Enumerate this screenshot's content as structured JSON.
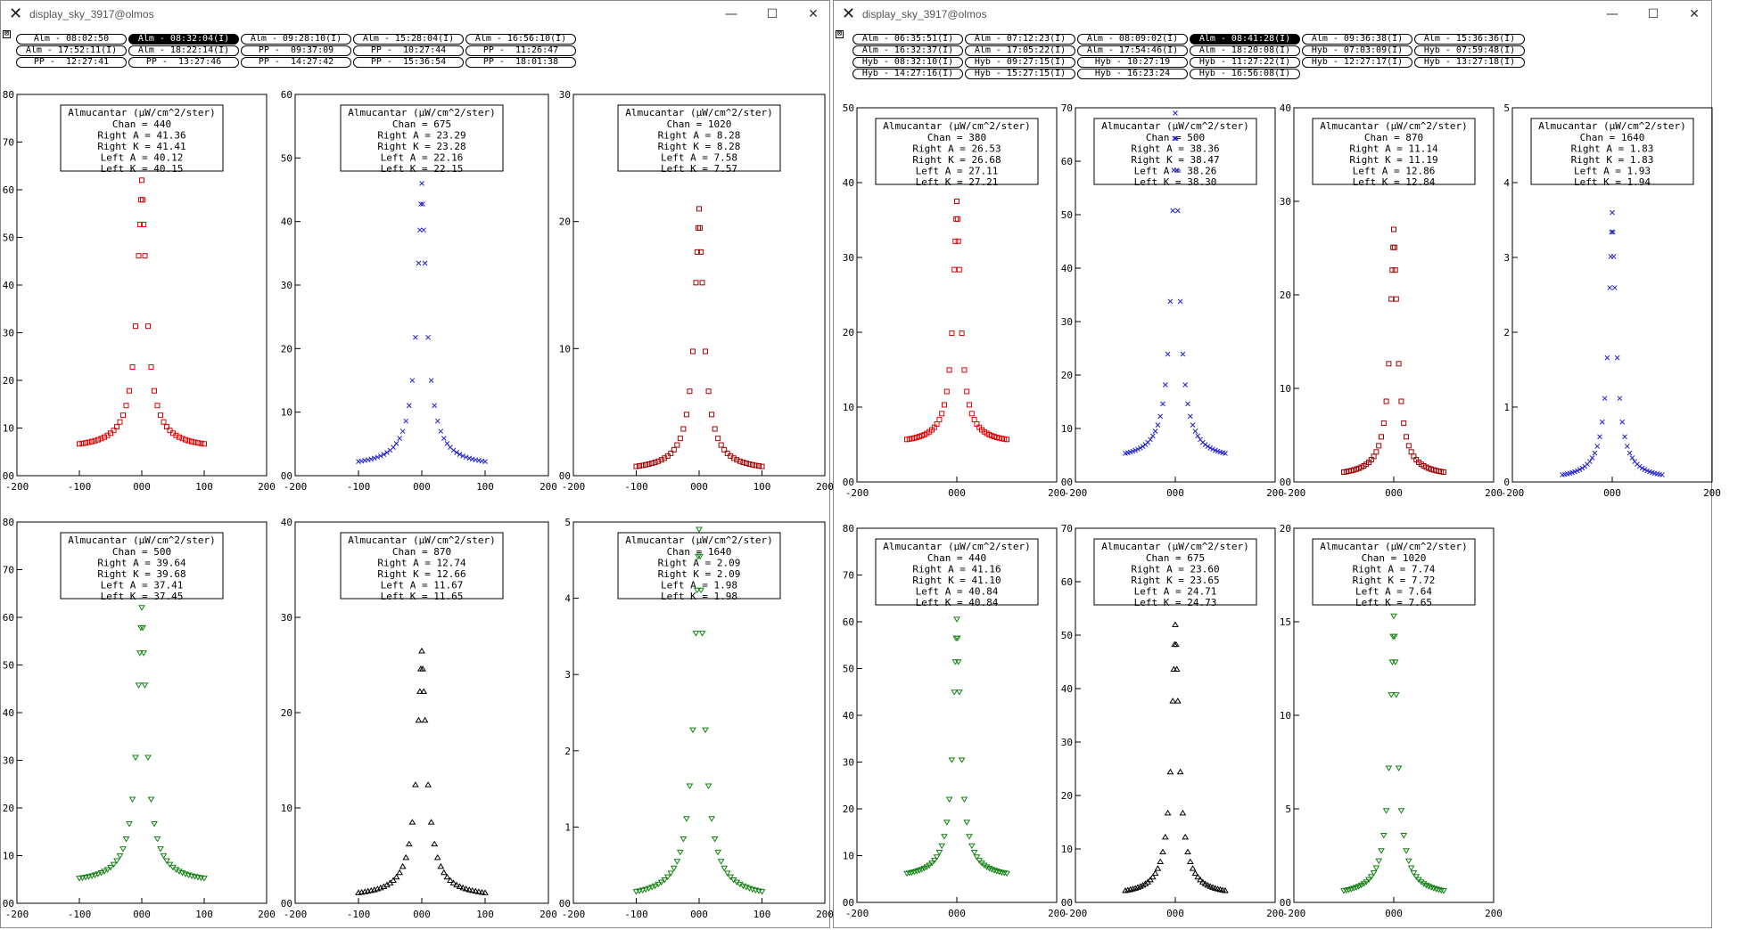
{
  "windows": [
    {
      "title": "display_sky_3917@olmos",
      "controls": {
        "minimize": "—",
        "maximize": "☐",
        "close": "✕"
      },
      "buttons": [
        {
          "label": "Alm - 08:02:50",
          "active": false
        },
        {
          "label": "Alm - 08:32:04(I)",
          "active": true
        },
        {
          "label": "Alm - 09:28:10(I)",
          "active": false
        },
        {
          "label": "Alm - 15:28:04(I)",
          "active": false
        },
        {
          "label": "Alm - 16:56:10(I)",
          "active": false
        },
        {
          "label": "Alm - 17:52:11(I)",
          "active": false
        },
        {
          "label": "Alm - 18:22:14(I)",
          "active": false
        },
        {
          "label": "PP -  09:37:09",
          "active": false
        },
        {
          "label": "PP -  10:27:44",
          "active": false
        },
        {
          "label": "PP -  11:26:47",
          "active": false
        },
        {
          "label": "PP -  12:27:41",
          "active": false
        },
        {
          "label": "PP -  13:27:46",
          "active": false
        },
        {
          "label": "PP -  14:27:42",
          "active": false
        },
        {
          "label": "PP -  15:36:54",
          "active": false
        },
        {
          "label": "PP -  18:01:38",
          "active": false
        }
      ],
      "plots": [
        {
          "title": "Almucantar (µW/cm^2/ster)",
          "lines": [
            "Chan = 440",
            "Right A = 41.36",
            "Right K = 41.41",
            "Left A = 40.12",
            "Left K = 40.15"
          ],
          "color": "#e00000",
          "marker": "square",
          "ymax": 80,
          "ystep": 10,
          "peak": 62,
          "base": 5.5,
          "xlabels": [
            "-200",
            "-100",
            "000",
            "100",
            "200"
          ],
          "ylabels": [
            "00",
            "10",
            "20",
            "30",
            "40",
            "50",
            "60",
            "70",
            "80"
          ]
        },
        {
          "title": "Almucantar (µW/cm^2/ster)",
          "lines": [
            "Chan = 675",
            "Right A = 23.29",
            "Right K = 23.28",
            "Left A = 22.16",
            "Left K = 22.15"
          ],
          "color": "#2020d0",
          "marker": "x",
          "ymax": 60,
          "ystep": 10,
          "peak": 46,
          "base": 1.3,
          "xlabels": [
            "-200",
            "-100",
            "000",
            "100",
            "200"
          ],
          "ylabels": [
            "00",
            "10",
            "20",
            "30",
            "40",
            "50",
            "60"
          ]
        },
        {
          "title": "Almucantar (µW/cm^2/ster)",
          "lines": [
            "Chan = 1020",
            "Right A = 8.28",
            "Right K = 8.28",
            "Left A = 7.58",
            "Left K = 7.57"
          ],
          "color": "#a00000",
          "marker": "square",
          "ymax": 30,
          "ystep": 10,
          "peak": 21,
          "base": 0.3,
          "xlabels": [
            "-200",
            "-100",
            "000",
            "100",
            "200"
          ],
          "ylabels": [
            "00",
            "10",
            "20",
            "30"
          ]
        },
        {
          "title": "Almucantar (µW/cm^2/ster)",
          "lines": [
            "Chan = 500",
            "Right A = 39.64",
            "Right K = 39.68",
            "Left A = 37.41",
            "Left K = 37.45"
          ],
          "color": "#108010",
          "marker": "tri-down",
          "ymax": 80,
          "ystep": 10,
          "peak": 62,
          "base": 4,
          "xlabels": [
            "-200",
            "-100",
            "000",
            "100",
            "200"
          ],
          "ylabels": [
            "00",
            "10",
            "20",
            "30",
            "40",
            "50",
            "60",
            "70",
            "80"
          ]
        },
        {
          "title": "Almucantar (µW/cm^2/ster)",
          "lines": [
            "Chan = 870",
            "Right A = 12.74",
            "Right K = 12.66",
            "Left A = 11.67",
            "Left K = 11.65"
          ],
          "color": "#000000",
          "marker": "tri-up",
          "ymax": 40,
          "ystep": 10,
          "peak": 26.5,
          "base": 0.6,
          "xlabels": [
            "-200",
            "-100",
            "000",
            "100",
            "200"
          ],
          "ylabels": [
            "00",
            "10",
            "20",
            "30",
            "40"
          ]
        },
        {
          "title": "Almucantar (µW/cm^2/ster)",
          "lines": [
            "Chan = 1640",
            "Right A = 2.09",
            "Right K = 2.09",
            "Left A = 1.98",
            "Left K = 1.98"
          ],
          "color": "#108010",
          "marker": "tri-down",
          "ymax": 5,
          "ystep": 1,
          "peak": 4.9,
          "base": 0.05,
          "xlabels": [
            "-200",
            "-100",
            "000",
            "100",
            "200"
          ],
          "ylabels": [
            "00",
            "1",
            "2",
            "3",
            "4",
            "5"
          ]
        }
      ]
    },
    {
      "title": "display_sky_3917@olmos",
      "controls": {
        "minimize": "—",
        "maximize": "☐",
        "close": "✕"
      },
      "buttons": [
        {
          "label": "Alm - 06:35:51(I)",
          "active": false
        },
        {
          "label": "Alm - 07:12:23(I)",
          "active": false
        },
        {
          "label": "Alm - 08:09:02(I)",
          "active": false
        },
        {
          "label": "Alm - 08:41:28(I)",
          "active": true
        },
        {
          "label": "Alm - 09:36:38(I)",
          "active": false
        },
        {
          "label": "Alm - 15:36:36(I)",
          "active": false
        },
        {
          "label": "Alm - 16:32:37(I)",
          "active": false
        },
        {
          "label": "Alm - 17:05:22(I)",
          "active": false
        },
        {
          "label": "Alm - 17:54:46(I)",
          "active": false
        },
        {
          "label": "Alm - 18:20:08(I)",
          "active": false
        },
        {
          "label": "Hyb - 07:03:09(I)",
          "active": false
        },
        {
          "label": "Hyb - 07:59:48(I)",
          "active": false
        },
        {
          "label": "Hyb - 08:32:10(I)",
          "active": false
        },
        {
          "label": "Hyb - 09:27:15(I)",
          "active": false
        },
        {
          "label": "Hyb - 10:27:19",
          "active": false
        },
        {
          "label": "Hyb - 11:27:22(I)",
          "active": false
        },
        {
          "label": "Hyb - 12:27:17(I)",
          "active": false
        },
        {
          "label": "Hyb - 13:27:18(I)",
          "active": false
        },
        {
          "label": "Hyb - 14:27:16(I)",
          "active": false
        },
        {
          "label": "Hyb - 15:27:15(I)",
          "active": false
        },
        {
          "label": "Hyb - 16:23:24",
          "active": false
        },
        {
          "label": "Hyb - 16:56:08(I)",
          "active": false
        }
      ],
      "plots": [
        {
          "title": "Almucantar (µW/cm^2/ster)",
          "lines": [
            "Chan = 380",
            "Right A = 26.53",
            "Right K = 26.68",
            "Left A = 27.11",
            "Left K = 27.21"
          ],
          "color": "#e00000",
          "marker": "square",
          "ymax": 50,
          "ystep": 10,
          "peak": 37.5,
          "base": 5,
          "xlabels": [
            "-200",
            "000",
            "200"
          ],
          "ylabels": [
            "00",
            "10",
            "20",
            "30",
            "40",
            "50"
          ]
        },
        {
          "title": "Almucantar (µW/cm^2/ster)",
          "lines": [
            "Chan = 500",
            "Right A = 38.36",
            "Right K = 38.47",
            "Left A = 38.26",
            "Left K = 38.30"
          ],
          "color": "#2020d0",
          "marker": "x",
          "ymax": 70,
          "ystep": 10,
          "peak": 69,
          "base": 4,
          "xlabels": [
            "-200",
            "000",
            "200"
          ],
          "ylabels": [
            "00",
            "10",
            "20",
            "30",
            "40",
            "50",
            "60",
            "70"
          ]
        },
        {
          "title": "Almucantar (µW/cm^2/ster)",
          "lines": [
            "Chan = 870",
            "Right A = 11.14",
            "Right K = 11.19",
            "Left A = 12.86",
            "Left K = 12.84"
          ],
          "color": "#a00000",
          "marker": "square",
          "ymax": 40,
          "ystep": 10,
          "peak": 27,
          "base": 0.5,
          "xlabels": [
            "-200",
            "000",
            "200"
          ],
          "ylabels": [
            "00",
            "10",
            "20",
            "30",
            "40"
          ]
        },
        {
          "title": "Almucantar (µW/cm^2/ster)",
          "lines": [
            "Chan = 1640",
            "Right A = 1.83",
            "Right K = 1.83",
            "Left A = 1.93",
            "Left K = 1.94"
          ],
          "color": "#2020d0",
          "marker": "x",
          "ymax": 5,
          "ystep": 1,
          "peak": 3.6,
          "base": 0.02,
          "xlabels": [
            "-200",
            "000",
            "200"
          ],
          "ylabels": [
            "0",
            "1",
            "2",
            "3",
            "4",
            "5"
          ]
        },
        {
          "title": "Almucantar (µW/cm^2/ster)",
          "lines": [
            "Chan = 440",
            "Right A = 41.16",
            "Right K = 41.10",
            "Left A = 40.84",
            "Left K = 40.84"
          ],
          "color": "#108010",
          "marker": "tri-down",
          "ymax": 80,
          "ystep": 10,
          "peak": 60.5,
          "base": 5,
          "xlabels": [
            "-200",
            "000",
            "200"
          ],
          "ylabels": [
            "00",
            "10",
            "20",
            "30",
            "40",
            "50",
            "60",
            "70",
            "80"
          ]
        },
        {
          "title": "Almucantar (µW/cm^2/ster)",
          "lines": [
            "Chan = 675",
            "Right A = 23.60",
            "Right K = 23.65",
            "Left A = 24.71",
            "Left K = 24.73"
          ],
          "color": "#000000",
          "marker": "tri-up",
          "ymax": 70,
          "ystep": 10,
          "peak": 52,
          "base": 1.2,
          "xlabels": [
            "-200",
            "000",
            "200"
          ],
          "ylabels": [
            "00",
            "10",
            "20",
            "30",
            "40",
            "50",
            "60",
            "70"
          ]
        },
        {
          "title": "Almucantar (µW/cm^2/ster)",
          "lines": [
            "Chan = 1020",
            "Right A = 7.74",
            "Right K = 7.72",
            "Left A = 7.64",
            "Left K = 7.65"
          ],
          "color": "#108010",
          "marker": "tri-down",
          "ymax": 20,
          "ystep": 5,
          "peak": 15.3,
          "base": 0.3,
          "xlabels": [
            "-200",
            "000",
            "200"
          ],
          "ylabels": [
            "00",
            "5",
            "10",
            "15",
            "20"
          ]
        }
      ]
    }
  ]
}
